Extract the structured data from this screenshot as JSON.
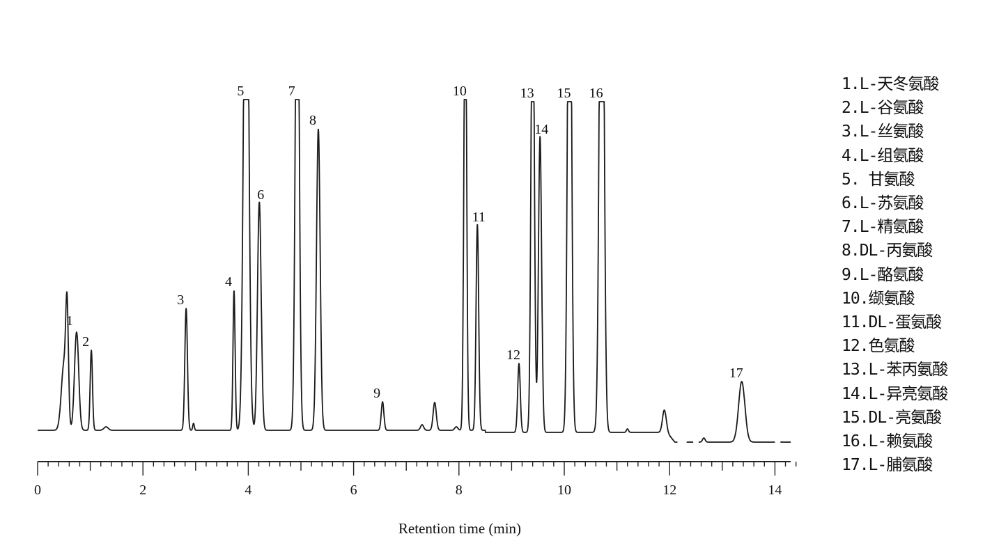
{
  "chart_data": {
    "type": "line",
    "title": "",
    "xlabel": "Retention time (min)",
    "ylabel": "",
    "xlim": [
      0,
      14.3
    ],
    "x_ticks": [
      0,
      2,
      4,
      6,
      8,
      10,
      12,
      14
    ],
    "x_tick_labels": [
      "0",
      "2",
      "4",
      "6",
      "8",
      "10",
      "12",
      "14"
    ],
    "minor_tick_step": 0.2,
    "grid": false,
    "clip_intensity": 475,
    "peaks": [
      {
        "label": "",
        "t": 0.56,
        "height": 150,
        "sigma": 0.025
      },
      {
        "label": "",
        "t": 0.5,
        "height": 95,
        "sigma": 0.05
      },
      {
        "label": "1",
        "t": 0.74,
        "height": 141,
        "sigma": 0.04
      },
      {
        "label": "2",
        "t": 1.02,
        "height": 115,
        "sigma": 0.022
      },
      {
        "label": "",
        "t": 1.3,
        "height": 5,
        "sigma": 0.04
      },
      {
        "label": "3",
        "t": 2.82,
        "height": 175,
        "sigma": 0.025
      },
      {
        "label": "",
        "t": 2.96,
        "height": 10,
        "sigma": 0.015
      },
      {
        "label": "4",
        "t": 3.73,
        "height": 201,
        "sigma": 0.02
      },
      {
        "label": "5",
        "t": 3.96,
        "height": 900,
        "sigma": 0.045
      },
      {
        "label": "6",
        "t": 4.21,
        "height": 328,
        "sigma": 0.035
      },
      {
        "label": "7",
        "t": 4.93,
        "height": 800,
        "sigma": 0.035
      },
      {
        "label": "8",
        "t": 5.33,
        "height": 433,
        "sigma": 0.035
      },
      {
        "label": "9",
        "t": 6.55,
        "height": 41,
        "sigma": 0.025
      },
      {
        "label": "",
        "t": 7.3,
        "height": 8,
        "sigma": 0.03
      },
      {
        "label": "",
        "t": 7.54,
        "height": 40,
        "sigma": 0.03
      },
      {
        "label": "",
        "t": 7.95,
        "height": 5,
        "sigma": 0.03
      },
      {
        "label": "10",
        "t": 8.12,
        "height": 700,
        "sigma": 0.025
      },
      {
        "label": "11",
        "t": 8.35,
        "height": 296,
        "sigma": 0.025
      },
      {
        "label": "12",
        "t": 9.14,
        "height": 99,
        "sigma": 0.025
      },
      {
        "label": "13",
        "t": 9.4,
        "height": 700,
        "sigma": 0.03
      },
      {
        "label": "14",
        "t": 9.54,
        "height": 425,
        "sigma": 0.03
      },
      {
        "label": "15",
        "t": 10.1,
        "height": 900,
        "sigma": 0.035
      },
      {
        "label": "16",
        "t": 10.71,
        "height": 1000,
        "sigma": 0.04
      },
      {
        "label": "",
        "t": 11.2,
        "height": 5,
        "sigma": 0.02
      },
      {
        "label": "",
        "t": 11.9,
        "height": 32,
        "sigma": 0.035
      },
      {
        "label": "",
        "t": 12.65,
        "height": 6,
        "sigma": 0.025
      },
      {
        "label": "17",
        "t": 13.37,
        "height": 87,
        "sigma": 0.06
      }
    ]
  },
  "legend": [
    "1.L-天冬氨酸",
    "2.L-谷氨酸",
    "3.L-丝氨酸",
    "4.L-组氨酸",
    "5. 甘氨酸",
    "6.L-苏氨酸",
    "7.L-精氨酸",
    "8.DL-丙氨酸",
    "9.L-酪氨酸",
    "10.缬氨酸",
    "11.DL-蛋氨酸",
    "12.色氨酸",
    "13.L-苯丙氨酸",
    "14.L-异亮氨酸",
    "15.DL-亮氨酸",
    "16.L-赖氨酸",
    "17.L-脯氨酸"
  ]
}
